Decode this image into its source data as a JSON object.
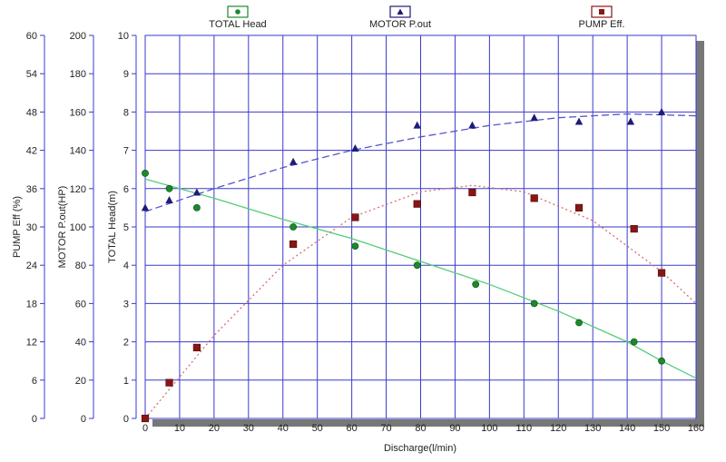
{
  "chart_data": {
    "type": "scatter",
    "xlabel": "Discharge(l/min)",
    "x_ticks": [
      0,
      10,
      20,
      30,
      40,
      50,
      60,
      70,
      80,
      90,
      100,
      110,
      120,
      130,
      140,
      150,
      160
    ],
    "xlim": [
      0,
      160
    ],
    "axes": [
      {
        "id": "eff",
        "label": "PUMP Eff (%)",
        "ylim": [
          0,
          60
        ],
        "ticks": [
          0,
          6,
          12,
          18,
          24,
          30,
          36,
          42,
          48,
          54,
          60
        ]
      },
      {
        "id": "pout",
        "label": "MOTOR P.out(HP)",
        "ylim": [
          0,
          200
        ],
        "ticks": [
          0,
          20,
          40,
          60,
          80,
          100,
          120,
          140,
          160,
          180,
          200
        ]
      },
      {
        "id": "head",
        "label": "TOTAL Head(m)",
        "ylim": [
          0,
          10
        ],
        "ticks": [
          0,
          1,
          2,
          3,
          4,
          5,
          6,
          7,
          8,
          9,
          10
        ]
      }
    ],
    "grid": true,
    "legend_position": "top",
    "series": [
      {
        "name": "TOTAL Head",
        "axis": "head",
        "marker": "circle",
        "color": "#1a8a2a",
        "line_color": "#55cc77",
        "line_style": "solid",
        "points": [
          [
            0,
            6.4
          ],
          [
            7,
            6.0
          ],
          [
            15,
            5.5
          ],
          [
            43,
            5.0
          ],
          [
            61,
            4.5
          ],
          [
            79,
            4.0
          ],
          [
            96,
            3.5
          ],
          [
            113,
            3.0
          ],
          [
            126,
            2.5
          ],
          [
            142,
            2.0
          ],
          [
            150,
            1.5
          ]
        ],
        "fit": [
          [
            0,
            6.25
          ],
          [
            20,
            5.75
          ],
          [
            40,
            5.2
          ],
          [
            60,
            4.7
          ],
          [
            80,
            4.1
          ],
          [
            100,
            3.5
          ],
          [
            120,
            2.8
          ],
          [
            140,
            2.0
          ],
          [
            150,
            1.5
          ],
          [
            160,
            1.05
          ]
        ]
      },
      {
        "name": "MOTOR P.out",
        "axis": "pout",
        "marker": "triangle",
        "color": "#1c1c7a",
        "line_color": "#5555cc",
        "line_style": "dashed",
        "points": [
          [
            0,
            110
          ],
          [
            7,
            114
          ],
          [
            15,
            118
          ],
          [
            43,
            134
          ],
          [
            61,
            141
          ],
          [
            79,
            153
          ],
          [
            95,
            153
          ],
          [
            113,
            157
          ],
          [
            126,
            155
          ],
          [
            141,
            155
          ],
          [
            150,
            160
          ]
        ],
        "fit": [
          [
            0,
            108
          ],
          [
            20,
            120
          ],
          [
            40,
            131
          ],
          [
            60,
            140
          ],
          [
            80,
            147
          ],
          [
            100,
            153
          ],
          [
            120,
            157
          ],
          [
            140,
            159
          ],
          [
            160,
            158
          ]
        ]
      },
      {
        "name": "PUMP Eff.",
        "axis": "eff",
        "marker": "square",
        "color": "#8a1515",
        "line_color": "#d07070",
        "line_style": "dotted",
        "points": [
          [
            0,
            0
          ],
          [
            7,
            5.6
          ],
          [
            15,
            11.1
          ],
          [
            43,
            27.3
          ],
          [
            61,
            31.5
          ],
          [
            79,
            33.6
          ],
          [
            95,
            35.4
          ],
          [
            113,
            34.5
          ],
          [
            126,
            33.0
          ],
          [
            142,
            29.7
          ],
          [
            150,
            22.8
          ]
        ],
        "fit": [
          [
            0,
            0
          ],
          [
            20,
            13
          ],
          [
            40,
            24
          ],
          [
            60,
            31.5
          ],
          [
            80,
            35.5
          ],
          [
            95,
            36.5
          ],
          [
            110,
            35.5
          ],
          [
            130,
            31
          ],
          [
            150,
            23
          ],
          [
            160,
            18
          ]
        ]
      }
    ]
  }
}
